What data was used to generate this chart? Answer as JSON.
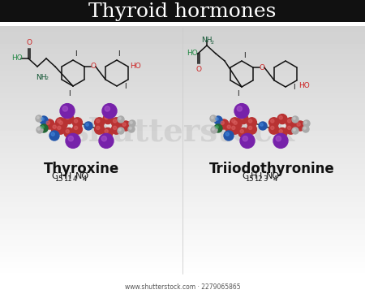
{
  "title": "Thyroid hormones",
  "title_fontsize": 20,
  "molecule1_name": "Thyroxine",
  "molecule2_name": "Triiodothyronine",
  "footer": "www.shutterstock.com · 2279065865",
  "watermark": "shutterstock",
  "col_black": "#1a1a1a",
  "col_red": "#cc2222",
  "col_green": "#228844",
  "col_blue": "#2266bb",
  "col_purple": "#7722aa",
  "col_gray": "#999999",
  "col_darkgreen": "#115533",
  "col_teal": "#338888"
}
